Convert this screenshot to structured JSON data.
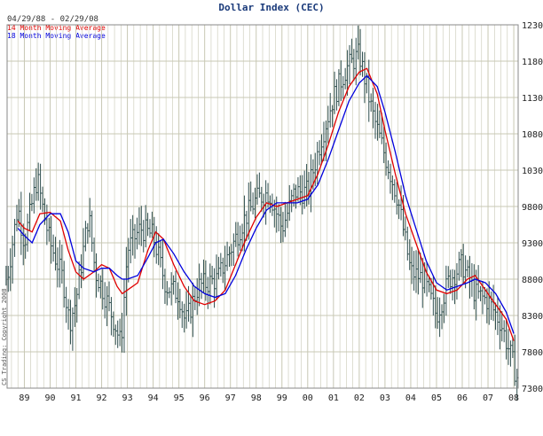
{
  "chart_data": {
    "type": "line",
    "title": "Dollar Index (CEC)",
    "date_range": "04/29/88 - 02/29/08",
    "copyright": "CS Trading: Copyright 2008",
    "x_tick_labels": [
      "89",
      "90",
      "91",
      "92",
      "93",
      "94",
      "95",
      "96",
      "97",
      "98",
      "99",
      "00",
      "01",
      "02",
      "03",
      "04",
      "05",
      "06",
      "07",
      "08"
    ],
    "x_tick_years": [
      1989,
      1990,
      1991,
      1992,
      1993,
      1994,
      1995,
      1996,
      1997,
      1998,
      1999,
      2000,
      2001,
      2002,
      2003,
      2004,
      2005,
      2006,
      2007,
      2008
    ],
    "y_tick_labels": [
      "12300",
      "11800",
      "11300",
      "10800",
      "10300",
      "9800",
      "9300",
      "8800",
      "8300",
      "7800",
      "7300"
    ],
    "y_ticks": [
      12300,
      11800,
      11300,
      10800,
      10300,
      9800,
      9300,
      8800,
      8300,
      7800,
      7300
    ],
    "xlim": [
      1988.33,
      2008.17
    ],
    "ylim": [
      7300,
      12300
    ],
    "grid": true,
    "legend_position": "top-left",
    "colors": {
      "bars": "#2f4f4f",
      "ma14": "#e00000",
      "ma18": "#0000dd",
      "grid": "#c8c8b4"
    },
    "monthly_bars": {
      "start": [
        1988,
        4
      ],
      "end": [
        2008,
        2
      ],
      "closes_at": [
        [
          1988.33,
          8800
        ],
        [
          1988.75,
          9800
        ],
        [
          1989.0,
          9300
        ],
        [
          1989.5,
          10200
        ],
        [
          1989.75,
          9700
        ],
        [
          1990.0,
          9300
        ],
        [
          1990.5,
          8800
        ],
        [
          1990.75,
          8200
        ],
        [
          1991.0,
          8500
        ],
        [
          1991.5,
          9700
        ],
        [
          1991.75,
          8900
        ],
        [
          1992.0,
          8700
        ],
        [
          1992.5,
          8200
        ],
        [
          1992.75,
          7900
        ],
        [
          1993.0,
          9200
        ],
        [
          1993.5,
          9500
        ],
        [
          1994.0,
          9400
        ],
        [
          1994.5,
          8700
        ],
        [
          1995.0,
          8600
        ],
        [
          1995.25,
          8200
        ],
        [
          1995.75,
          8700
        ],
        [
          1996.5,
          8800
        ],
        [
          1997.0,
          9200
        ],
        [
          1997.5,
          9600
        ],
        [
          1998.0,
          9900
        ],
        [
          1998.5,
          10000
        ],
        [
          1999.0,
          9500
        ],
        [
          1999.5,
          10000
        ],
        [
          2000.0,
          10000
        ],
        [
          2000.5,
          10700
        ],
        [
          2001.0,
          11300
        ],
        [
          2001.5,
          11700
        ],
        [
          2002.0,
          11900
        ],
        [
          2002.5,
          11100
        ],
        [
          2003.0,
          10500
        ],
        [
          2003.5,
          9900
        ],
        [
          2004.0,
          8900
        ],
        [
          2004.5,
          8800
        ],
        [
          2005.0,
          8300
        ],
        [
          2005.5,
          8800
        ],
        [
          2006.0,
          9000
        ],
        [
          2006.5,
          8600
        ],
        [
          2007.0,
          8500
        ],
        [
          2007.5,
          8200
        ],
        [
          2008.0,
          7600
        ],
        [
          2008.17,
          7400
        ]
      ]
    },
    "series": [
      {
        "name": "14 Month Moving Average",
        "color": "#e00000",
        "points": [
          [
            1988.75,
            9600
          ],
          [
            1989.0,
            9500
          ],
          [
            1989.3,
            9450
          ],
          [
            1989.6,
            9700
          ],
          [
            1990.0,
            9720
          ],
          [
            1990.4,
            9600
          ],
          [
            1990.7,
            9200
          ],
          [
            1991.0,
            8900
          ],
          [
            1991.3,
            8800
          ],
          [
            1991.7,
            8900
          ],
          [
            1992.0,
            9000
          ],
          [
            1992.3,
            8950
          ],
          [
            1992.6,
            8700
          ],
          [
            1992.8,
            8600
          ],
          [
            1993.0,
            8650
          ],
          [
            1993.4,
            8750
          ],
          [
            1993.8,
            9200
          ],
          [
            1994.1,
            9450
          ],
          [
            1994.4,
            9350
          ],
          [
            1994.8,
            9000
          ],
          [
            1995.2,
            8700
          ],
          [
            1995.6,
            8500
          ],
          [
            1996.0,
            8450
          ],
          [
            1996.4,
            8500
          ],
          [
            1996.8,
            8650
          ],
          [
            1997.2,
            9000
          ],
          [
            1997.6,
            9350
          ],
          [
            1998.0,
            9650
          ],
          [
            1998.4,
            9850
          ],
          [
            1998.8,
            9800
          ],
          [
            1999.2,
            9850
          ],
          [
            1999.6,
            9900
          ],
          [
            2000.0,
            9950
          ],
          [
            2000.4,
            10250
          ],
          [
            2000.8,
            10650
          ],
          [
            2001.2,
            11100
          ],
          [
            2001.6,
            11450
          ],
          [
            2002.0,
            11650
          ],
          [
            2002.3,
            11700
          ],
          [
            2002.7,
            11350
          ],
          [
            2003.0,
            10850
          ],
          [
            2003.4,
            10250
          ],
          [
            2003.8,
            9700
          ],
          [
            2004.2,
            9300
          ],
          [
            2004.6,
            8900
          ],
          [
            2005.0,
            8650
          ],
          [
            2005.4,
            8600
          ],
          [
            2005.8,
            8650
          ],
          [
            2006.2,
            8800
          ],
          [
            2006.5,
            8850
          ],
          [
            2006.9,
            8650
          ],
          [
            2007.3,
            8450
          ],
          [
            2007.7,
            8250
          ],
          [
            2008.0,
            7950
          ]
        ]
      },
      {
        "name": "18 Month Moving Average",
        "color": "#0000dd",
        "points": [
          [
            1988.75,
            9500
          ],
          [
            1989.0,
            9400
          ],
          [
            1989.3,
            9300
          ],
          [
            1989.6,
            9550
          ],
          [
            1990.0,
            9700
          ],
          [
            1990.4,
            9700
          ],
          [
            1990.7,
            9450
          ],
          [
            1991.0,
            9050
          ],
          [
            1991.3,
            8950
          ],
          [
            1991.7,
            8900
          ],
          [
            1992.0,
            8950
          ],
          [
            1992.3,
            8950
          ],
          [
            1992.6,
            8850
          ],
          [
            1992.8,
            8800
          ],
          [
            1993.0,
            8800
          ],
          [
            1993.4,
            8850
          ],
          [
            1993.8,
            9100
          ],
          [
            1994.1,
            9300
          ],
          [
            1994.4,
            9350
          ],
          [
            1994.8,
            9150
          ],
          [
            1995.2,
            8900
          ],
          [
            1995.6,
            8700
          ],
          [
            1996.0,
            8600
          ],
          [
            1996.4,
            8550
          ],
          [
            1996.8,
            8600
          ],
          [
            1997.2,
            8850
          ],
          [
            1997.6,
            9200
          ],
          [
            1998.0,
            9500
          ],
          [
            1998.4,
            9750
          ],
          [
            1998.8,
            9850
          ],
          [
            1999.2,
            9850
          ],
          [
            1999.6,
            9850
          ],
          [
            2000.0,
            9900
          ],
          [
            2000.4,
            10100
          ],
          [
            2000.8,
            10450
          ],
          [
            2001.2,
            10850
          ],
          [
            2001.6,
            11250
          ],
          [
            2002.0,
            11500
          ],
          [
            2002.3,
            11600
          ],
          [
            2002.7,
            11450
          ],
          [
            2003.0,
            11100
          ],
          [
            2003.4,
            10550
          ],
          [
            2003.8,
            9950
          ],
          [
            2004.2,
            9500
          ],
          [
            2004.6,
            9050
          ],
          [
            2005.0,
            8750
          ],
          [
            2005.4,
            8650
          ],
          [
            2005.8,
            8700
          ],
          [
            2006.2,
            8750
          ],
          [
            2006.5,
            8800
          ],
          [
            2006.9,
            8750
          ],
          [
            2007.3,
            8600
          ],
          [
            2007.7,
            8350
          ],
          [
            2008.0,
            8050
          ]
        ]
      }
    ]
  }
}
